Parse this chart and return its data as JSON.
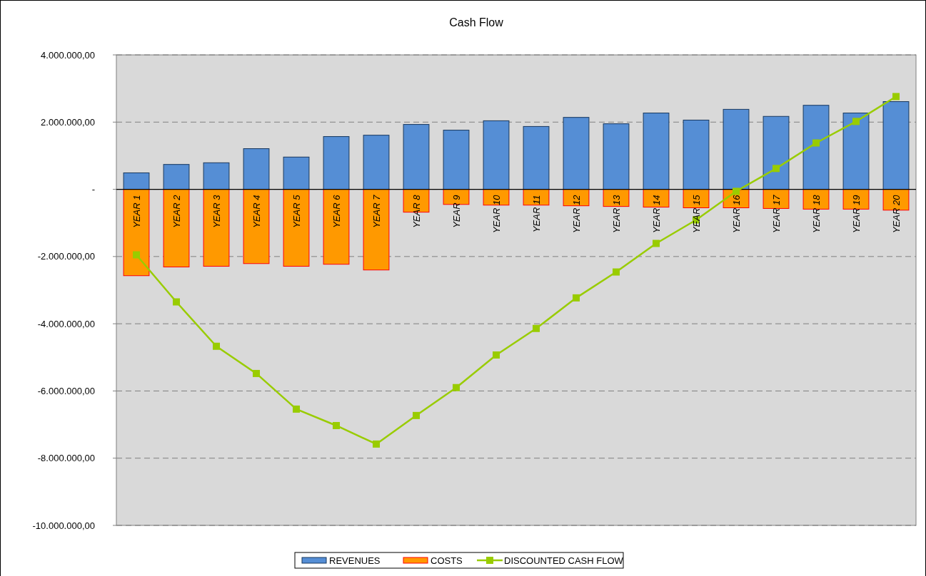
{
  "chart_data": {
    "type": "bar",
    "title": "Cash Flow",
    "stacked": true,
    "categories": [
      "YEAR 1",
      "YEAR 2",
      "YEAR 3",
      "YEAR 4",
      "YEAR 5",
      "YEAR 6",
      "YEAR 7",
      "YEAR 8",
      "YEAR 9",
      "YEAR 10",
      "YEAR 11",
      "YEAR 12",
      "YEAR 13",
      "YEAR 14",
      "YEAR 15",
      "YEAR 16",
      "YEAR 17",
      "YEAR 18",
      "YEAR 19",
      "YEAR 20"
    ],
    "series": [
      {
        "name": "REVENUES",
        "color": "#558ed5",
        "values": [
          490000,
          740000,
          790000,
          1210000,
          960000,
          1570000,
          1610000,
          1930000,
          1760000,
          2040000,
          1870000,
          2140000,
          1950000,
          2270000,
          2060000,
          2380000,
          2170000,
          2500000,
          2270000,
          2610000
        ]
      },
      {
        "name": "COSTS",
        "color": "#ff9900",
        "values": [
          -2570000,
          -2310000,
          -2290000,
          -2210000,
          -2290000,
          -2230000,
          -2400000,
          -680000,
          -450000,
          -470000,
          -470000,
          -490000,
          -510000,
          -530000,
          -550000,
          -550000,
          -570000,
          -590000,
          -590000,
          -620000
        ]
      },
      {
        "name": "DISCOUNTED CASH FLOW",
        "type": "line",
        "color": "#99cc00",
        "marker": "square",
        "values": [
          -1950000,
          -3350000,
          -4670000,
          -5480000,
          -6540000,
          -7030000,
          -7580000,
          -6730000,
          -5900000,
          -4930000,
          -4140000,
          -3230000,
          -2460000,
          -1610000,
          -910000,
          -60000,
          620000,
          1380000,
          2020000,
          2760000
        ]
      }
    ],
    "ylim": [
      -10000000,
      4000000
    ],
    "yticks": [
      {
        "value": -10000000,
        "label": "-10.000.000,00"
      },
      {
        "value": -8000000,
        "label": "-8.000.000,00"
      },
      {
        "value": -6000000,
        "label": "-6.000.000,00"
      },
      {
        "value": -4000000,
        "label": "-4.000.000,00"
      },
      {
        "value": -2000000,
        "label": "-2.000.000,00"
      },
      {
        "value": 0,
        "label": "-"
      },
      {
        "value": 2000000,
        "label": "2.000.000,00"
      },
      {
        "value": 4000000,
        "label": "4.000.000,00"
      }
    ],
    "grid": "y",
    "legend": "bottom"
  }
}
